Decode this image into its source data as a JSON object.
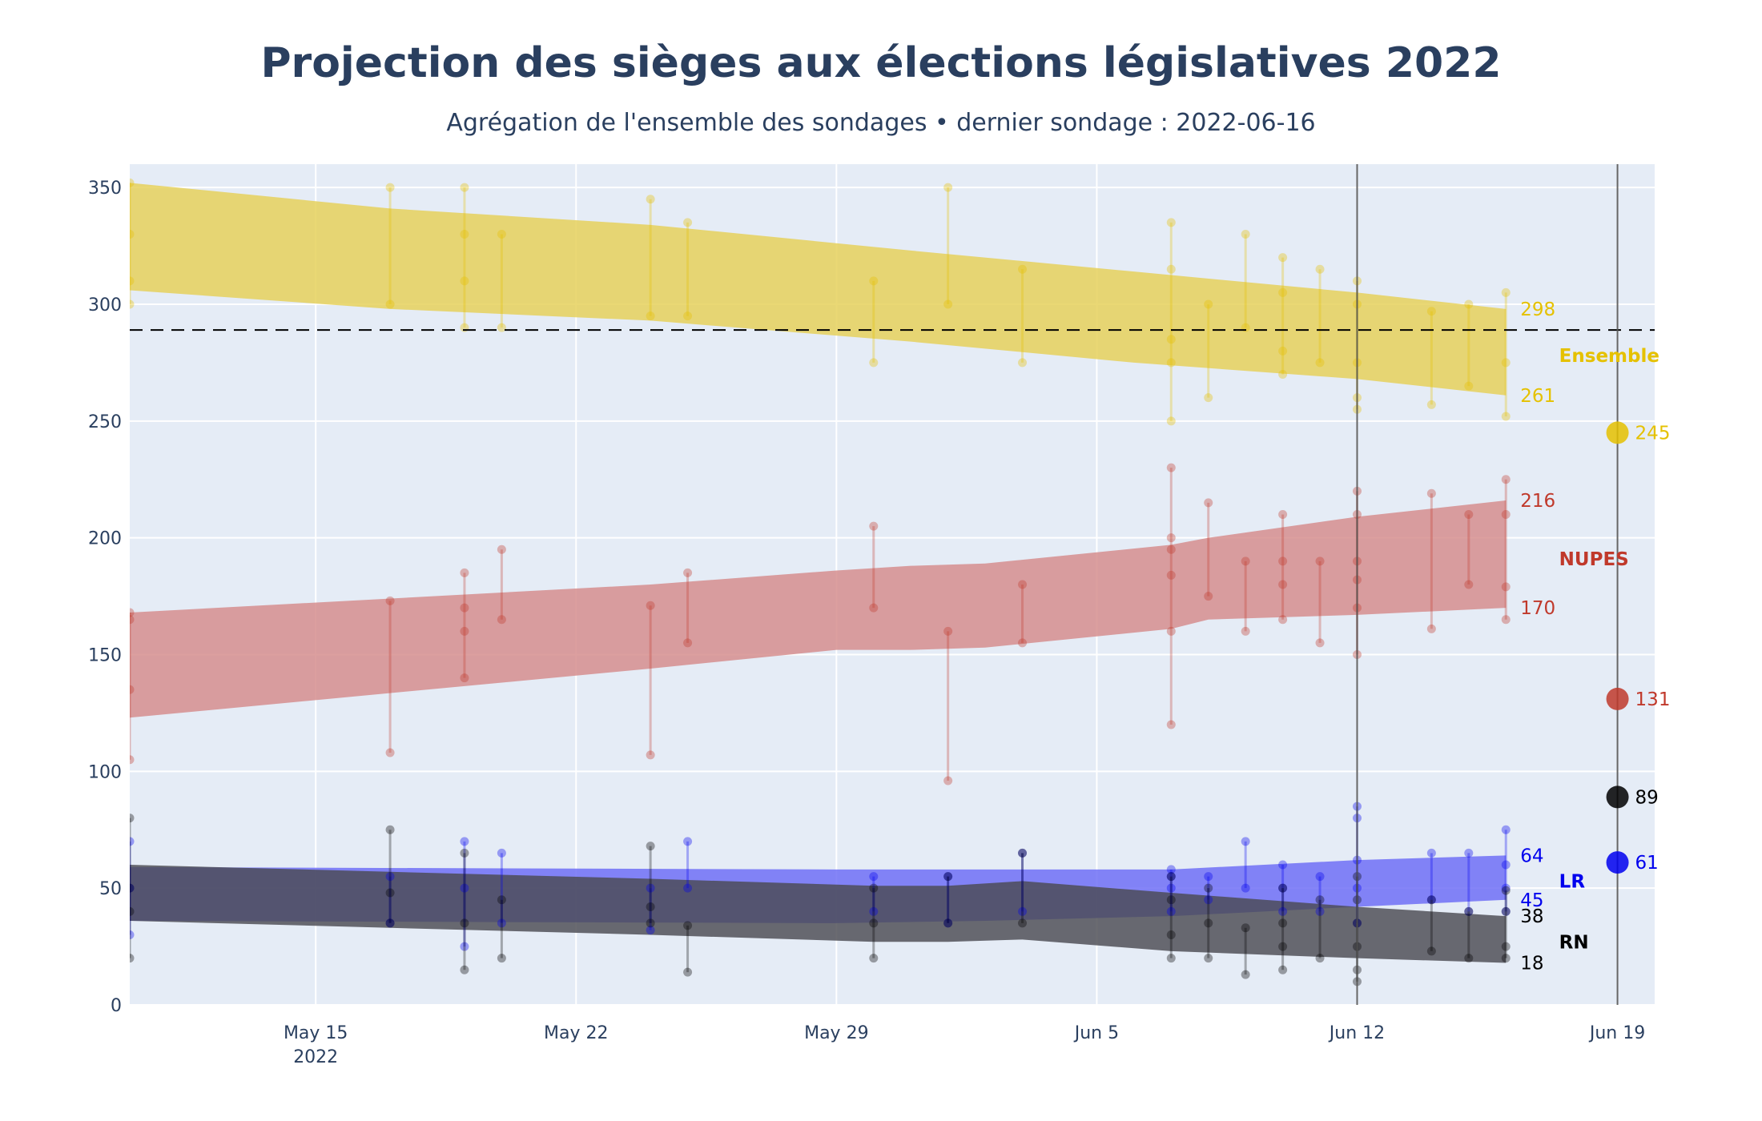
{
  "chart_data": {
    "type": "area",
    "title": "Projection des sièges aux élections législatives 2022",
    "subtitle": "Agrégation de l'ensemble des sondages • dernier sondage : 2022-06-16",
    "x_axis": {
      "range": [
        "2022-05-10",
        "2022-06-20"
      ],
      "ticks": [
        {
          "date": "2022-05-15",
          "label": "May 15",
          "sublabel": "2022"
        },
        {
          "date": "2022-05-22",
          "label": "May 22",
          "sublabel": ""
        },
        {
          "date": "2022-05-29",
          "label": "May 29",
          "sublabel": ""
        },
        {
          "date": "2022-06-05",
          "label": "Jun 5",
          "sublabel": ""
        },
        {
          "date": "2022-06-12",
          "label": "Jun 12",
          "sublabel": ""
        },
        {
          "date": "2022-06-19",
          "label": "Jun 19",
          "sublabel": ""
        }
      ]
    },
    "y_axis": {
      "range": [
        0,
        360
      ],
      "ticks": [
        0,
        50,
        100,
        150,
        200,
        250,
        300,
        350
      ]
    },
    "majority_line": 289,
    "vertical_lines": [
      "2022-06-12",
      "2022-06-19"
    ],
    "series": [
      {
        "name": "Ensemble",
        "color": "#e5c100",
        "band_color": "#e5cf56",
        "band_x": [
          "2022-05-10",
          "2022-05-17",
          "2022-05-24",
          "2022-05-31",
          "2022-06-06",
          "2022-06-12",
          "2022-06-16"
        ],
        "band_upper": [
          352,
          341,
          334,
          323,
          314,
          305,
          298
        ],
        "band_lower": [
          306,
          298,
          293,
          284,
          275,
          268,
          261
        ],
        "last_upper": "298",
        "last_lower": "261",
        "result_date": "2022-06-19",
        "result": 245,
        "result_label": "245",
        "label_y": 278,
        "polls": [
          {
            "d": "2022-05-10",
            "lo": 300,
            "hi": 352,
            "pts": [
              300,
              310,
              330,
              352
            ]
          },
          {
            "d": "2022-05-17",
            "lo": 300,
            "hi": 350,
            "pts": [
              300,
              350
            ]
          },
          {
            "d": "2022-05-19",
            "lo": 290,
            "hi": 350,
            "pts": [
              290,
              310,
              330,
              350
            ]
          },
          {
            "d": "2022-05-20",
            "lo": 290,
            "hi": 330,
            "pts": [
              290,
              330
            ]
          },
          {
            "d": "2022-05-24",
            "lo": 295,
            "hi": 345,
            "pts": [
              295,
              345
            ]
          },
          {
            "d": "2022-05-25",
            "lo": 295,
            "hi": 335,
            "pts": [
              295,
              335
            ]
          },
          {
            "d": "2022-05-30",
            "lo": 275,
            "hi": 310,
            "pts": [
              275,
              310
            ]
          },
          {
            "d": "2022-06-01",
            "lo": 300,
            "hi": 350,
            "pts": [
              300,
              350
            ]
          },
          {
            "d": "2022-06-03",
            "lo": 275,
            "hi": 315,
            "pts": [
              275,
              315
            ]
          },
          {
            "d": "2022-06-07",
            "lo": 250,
            "hi": 335,
            "pts": [
              250,
              275,
              285,
              315,
              335
            ]
          },
          {
            "d": "2022-06-08",
            "lo": 260,
            "hi": 300,
            "pts": [
              260,
              300
            ]
          },
          {
            "d": "2022-06-09",
            "lo": 290,
            "hi": 330,
            "pts": [
              290,
              330
            ]
          },
          {
            "d": "2022-06-10",
            "lo": 270,
            "hi": 320,
            "pts": [
              270,
              280,
              305,
              320
            ]
          },
          {
            "d": "2022-06-11",
            "lo": 275,
            "hi": 315,
            "pts": [
              275,
              315
            ]
          },
          {
            "d": "2022-06-12",
            "lo": 255,
            "hi": 310,
            "pts": [
              255,
              260,
              275,
              300,
              310
            ]
          },
          {
            "d": "2022-06-14",
            "lo": 257,
            "hi": 297,
            "pts": [
              257,
              297
            ]
          },
          {
            "d": "2022-06-15",
            "lo": 265,
            "hi": 300,
            "pts": [
              265,
              300
            ]
          },
          {
            "d": "2022-06-16",
            "lo": 252,
            "hi": 305,
            "pts": [
              252,
              275,
              305
            ]
          }
        ]
      },
      {
        "name": "NUPES",
        "color": "#c0392b",
        "band_color": "#d48a8a",
        "band_x": [
          "2022-05-10",
          "2022-05-24",
          "2022-05-29",
          "2022-05-31",
          "2022-06-02",
          "2022-06-07",
          "2022-06-08",
          "2022-06-12",
          "2022-06-16"
        ],
        "band_upper": [
          168,
          180,
          186,
          188,
          189,
          197,
          200,
          209,
          216
        ],
        "band_lower": [
          123,
          144,
          152,
          152,
          153,
          161,
          165,
          167,
          170
        ],
        "last_upper": "216",
        "last_lower": "170",
        "result_date": "2022-06-19",
        "result": 131,
        "result_label": "131",
        "label_y": 191,
        "polls": [
          {
            "d": "2022-05-10",
            "lo": 105,
            "hi": 168,
            "pts": [
              105,
              135,
              165,
              168
            ]
          },
          {
            "d": "2022-05-17",
            "lo": 108,
            "hi": 173,
            "pts": [
              108,
              173
            ]
          },
          {
            "d": "2022-05-19",
            "lo": 140,
            "hi": 185,
            "pts": [
              140,
              160,
              170,
              185
            ]
          },
          {
            "d": "2022-05-20",
            "lo": 165,
            "hi": 195,
            "pts": [
              165,
              195
            ]
          },
          {
            "d": "2022-05-24",
            "lo": 107,
            "hi": 171,
            "pts": [
              107,
              171
            ]
          },
          {
            "d": "2022-05-25",
            "lo": 155,
            "hi": 185,
            "pts": [
              155,
              185
            ]
          },
          {
            "d": "2022-05-30",
            "lo": 170,
            "hi": 205,
            "pts": [
              170,
              205
            ]
          },
          {
            "d": "2022-06-01",
            "lo": 96,
            "hi": 160,
            "pts": [
              96,
              160
            ]
          },
          {
            "d": "2022-06-03",
            "lo": 155,
            "hi": 180,
            "pts": [
              155,
              180
            ]
          },
          {
            "d": "2022-06-07",
            "lo": 120,
            "hi": 230,
            "pts": [
              120,
              160,
              184,
              195,
              200,
              230
            ]
          },
          {
            "d": "2022-06-08",
            "lo": 175,
            "hi": 215,
            "pts": [
              175,
              215
            ]
          },
          {
            "d": "2022-06-09",
            "lo": 160,
            "hi": 190,
            "pts": [
              160,
              190
            ]
          },
          {
            "d": "2022-06-10",
            "lo": 165,
            "hi": 210,
            "pts": [
              165,
              180,
              190,
              210
            ]
          },
          {
            "d": "2022-06-11",
            "lo": 155,
            "hi": 190,
            "pts": [
              155,
              190
            ]
          },
          {
            "d": "2022-06-12",
            "lo": 150,
            "hi": 220,
            "pts": [
              150,
              170,
              182,
              190,
              210,
              220
            ]
          },
          {
            "d": "2022-06-14",
            "lo": 161,
            "hi": 219,
            "pts": [
              161,
              219
            ]
          },
          {
            "d": "2022-06-15",
            "lo": 180,
            "hi": 210,
            "pts": [
              180,
              210
            ]
          },
          {
            "d": "2022-06-16",
            "lo": 165,
            "hi": 225,
            "pts": [
              165,
              179,
              210,
              225
            ]
          }
        ]
      },
      {
        "name": "LR",
        "color": "#0000ee",
        "band_color": "#6a6af5",
        "band_x": [
          "2022-05-10",
          "2022-05-29",
          "2022-06-02",
          "2022-06-07",
          "2022-06-12",
          "2022-06-16"
        ],
        "band_upper": [
          59,
          58,
          58,
          58,
          62,
          64
        ],
        "band_lower": [
          36,
          35,
          36,
          38,
          42,
          45
        ],
        "last_upper": "64",
        "last_lower": "45",
        "result_date": "2022-06-19",
        "result": 61,
        "result_label": "61",
        "label_y": 53,
        "polls": [
          {
            "d": "2022-05-10",
            "lo": 30,
            "hi": 70,
            "pts": [
              30,
              50,
              70
            ]
          },
          {
            "d": "2022-05-17",
            "lo": 35,
            "hi": 55,
            "pts": [
              35,
              55
            ]
          },
          {
            "d": "2022-05-19",
            "lo": 25,
            "hi": 70,
            "pts": [
              25,
              50,
              70
            ]
          },
          {
            "d": "2022-05-20",
            "lo": 35,
            "hi": 65,
            "pts": [
              35,
              65
            ]
          },
          {
            "d": "2022-05-24",
            "lo": 32,
            "hi": 50,
            "pts": [
              32,
              50
            ]
          },
          {
            "d": "2022-05-25",
            "lo": 50,
            "hi": 70,
            "pts": [
              50,
              70
            ]
          },
          {
            "d": "2022-05-30",
            "lo": 40,
            "hi": 55,
            "pts": [
              40,
              55
            ]
          },
          {
            "d": "2022-06-01",
            "lo": 35,
            "hi": 55,
            "pts": [
              35,
              55
            ]
          },
          {
            "d": "2022-06-03",
            "lo": 40,
            "hi": 65,
            "pts": [
              40,
              65
            ]
          },
          {
            "d": "2022-06-07",
            "lo": 40,
            "hi": 58,
            "pts": [
              40,
              50,
              55,
              58
            ]
          },
          {
            "d": "2022-06-08",
            "lo": 45,
            "hi": 55,
            "pts": [
              45,
              55
            ]
          },
          {
            "d": "2022-06-09",
            "lo": 50,
            "hi": 70,
            "pts": [
              50,
              70
            ]
          },
          {
            "d": "2022-06-10",
            "lo": 40,
            "hi": 60,
            "pts": [
              40,
              50,
              60
            ]
          },
          {
            "d": "2022-06-11",
            "lo": 40,
            "hi": 55,
            "pts": [
              40,
              55
            ]
          },
          {
            "d": "2022-06-12",
            "lo": 35,
            "hi": 85,
            "pts": [
              35,
              50,
              62,
              80,
              85
            ]
          },
          {
            "d": "2022-06-14",
            "lo": 45,
            "hi": 65,
            "pts": [
              45,
              65
            ]
          },
          {
            "d": "2022-06-15",
            "lo": 40,
            "hi": 65,
            "pts": [
              40,
              65
            ]
          },
          {
            "d": "2022-06-16",
            "lo": 40,
            "hi": 75,
            "pts": [
              40,
              50,
              60,
              75
            ]
          }
        ]
      },
      {
        "name": "RN",
        "color": "#000000",
        "band_color": "#4a4a52",
        "band_x": [
          "2022-05-10",
          "2022-05-17",
          "2022-05-24",
          "2022-05-30",
          "2022-06-01",
          "2022-06-03",
          "2022-06-07",
          "2022-06-12",
          "2022-06-16"
        ],
        "band_upper": [
          60,
          57,
          54,
          51,
          51,
          53,
          48,
          42,
          38
        ],
        "band_lower": [
          36,
          33,
          30,
          27,
          27,
          28,
          23,
          20,
          18
        ],
        "last_upper": "38",
        "last_lower": "18",
        "result_date": "2022-06-19",
        "result": 89,
        "result_label": "89",
        "label_y": 27,
        "polls": [
          {
            "d": "2022-05-10",
            "lo": 20,
            "hi": 80,
            "pts": [
              20,
              40,
              50,
              80
            ]
          },
          {
            "d": "2022-05-17",
            "lo": 35,
            "hi": 75,
            "pts": [
              35,
              48,
              75
            ]
          },
          {
            "d": "2022-05-19",
            "lo": 15,
            "hi": 65,
            "pts": [
              15,
              35,
              65
            ]
          },
          {
            "d": "2022-05-20",
            "lo": 20,
            "hi": 45,
            "pts": [
              20,
              45
            ]
          },
          {
            "d": "2022-05-24",
            "lo": 35,
            "hi": 68,
            "pts": [
              35,
              42,
              68
            ]
          },
          {
            "d": "2022-05-25",
            "lo": 14,
            "hi": 34,
            "pts": [
              14,
              34
            ]
          },
          {
            "d": "2022-05-30",
            "lo": 20,
            "hi": 50,
            "pts": [
              20,
              35,
              50
            ]
          },
          {
            "d": "2022-06-01",
            "lo": 35,
            "hi": 55,
            "pts": [
              35,
              55
            ]
          },
          {
            "d": "2022-06-03",
            "lo": 35,
            "hi": 65,
            "pts": [
              35,
              65
            ]
          },
          {
            "d": "2022-06-07",
            "lo": 20,
            "hi": 55,
            "pts": [
              20,
              30,
              45,
              55
            ]
          },
          {
            "d": "2022-06-08",
            "lo": 20,
            "hi": 50,
            "pts": [
              20,
              35,
              50
            ]
          },
          {
            "d": "2022-06-09",
            "lo": 13,
            "hi": 33,
            "pts": [
              13,
              33
            ]
          },
          {
            "d": "2022-06-10",
            "lo": 15,
            "hi": 50,
            "pts": [
              15,
              25,
              35,
              50
            ]
          },
          {
            "d": "2022-06-11",
            "lo": 20,
            "hi": 45,
            "pts": [
              20,
              45
            ]
          },
          {
            "d": "2022-06-12",
            "lo": 10,
            "hi": 55,
            "pts": [
              10,
              15,
              25,
              35,
              45,
              55
            ]
          },
          {
            "d": "2022-06-14",
            "lo": 23,
            "hi": 45,
            "pts": [
              23,
              45
            ]
          },
          {
            "d": "2022-06-15",
            "lo": 20,
            "hi": 40,
            "pts": [
              20,
              40
            ]
          },
          {
            "d": "2022-06-16",
            "lo": 20,
            "hi": 49,
            "pts": [
              20,
              25,
              40,
              49
            ]
          }
        ]
      }
    ]
  }
}
